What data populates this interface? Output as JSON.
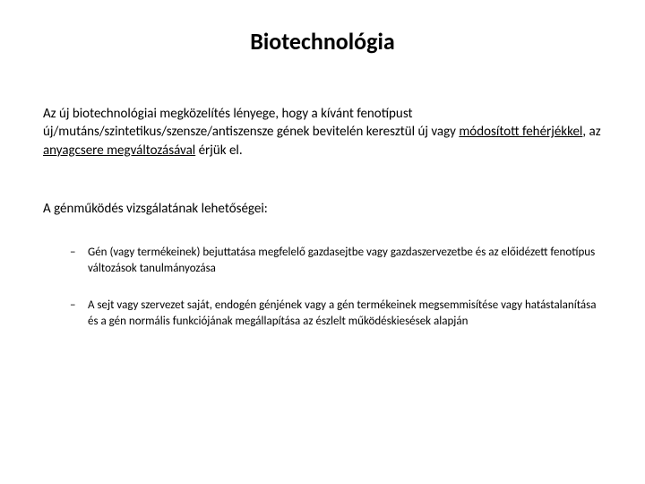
{
  "slide": {
    "title": "Biotechnológia",
    "paragraph1": {
      "pre": "Az új biotechnológiai megközelítés lényege, hogy a kívánt fenotípust új/mutáns/szintetikus/szensze/antiszensze gének bevitelén keresztül új vagy ",
      "underline1": "módosított fehérjékkel",
      "mid": ", az ",
      "underline2": "anyagcsere megváltozásával",
      "post": " érjük el."
    },
    "paragraph2": "A génműködés vizsgálatának lehetőségei:",
    "bullets": [
      "Gén (vagy termékeinek) bejuttatása megfelelő gazdasejtbe vagy gazdaszervezetbe és az előidézett fenotípus változások tanulmányozása",
      "A sejt vagy szervezet saját, endogén génjének vagy a gén termékeinek megsemmisítése vagy hatástalanítása és a gén normális funkciójának megállapítása az észlelt működéskiesések alapján"
    ]
  },
  "style": {
    "background_color": "#ffffff",
    "text_color": "#000000",
    "title_fontsize": 26,
    "body_fontsize": 15,
    "bullet_fontsize": 13,
    "font_family": "Calibri"
  }
}
